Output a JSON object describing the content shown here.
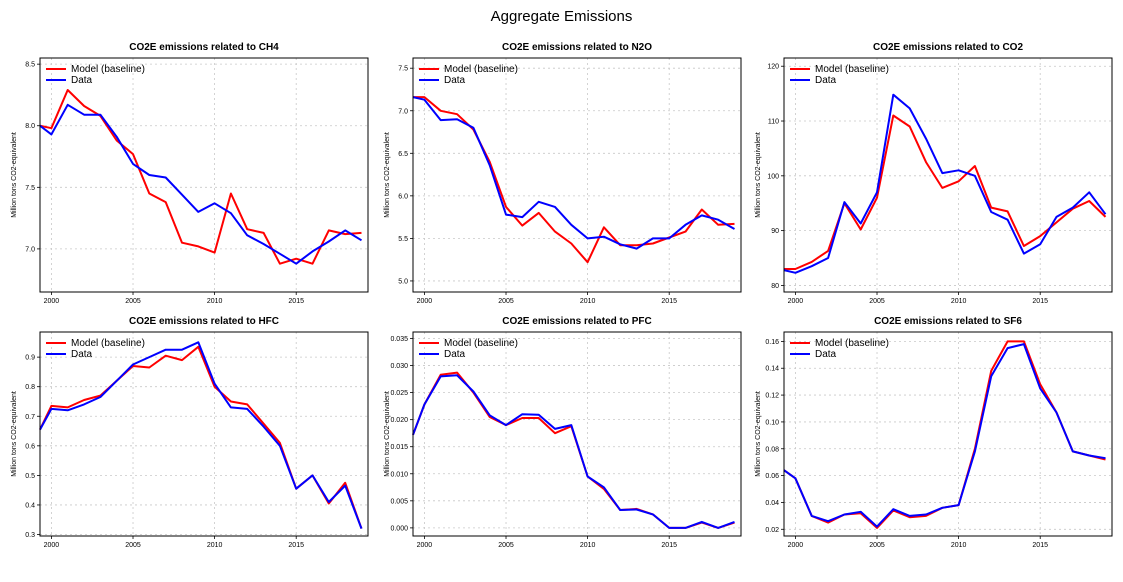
{
  "title": "Aggregate Emissions",
  "colors": {
    "model": "#ff0000",
    "data": "#0000ff",
    "grid": "#c8c8c8"
  },
  "chart_data": [
    {
      "type": "line",
      "title": "CO2E emissions related to CH4",
      "ylabel": "Million tons CO2-equivalent",
      "xlim": [
        1999.3,
        2019.4
      ],
      "ylim": [
        6.65,
        8.55
      ],
      "xticks": [
        2000,
        2005,
        2010,
        2015
      ],
      "yticks": [
        7.0,
        7.5,
        8.0,
        8.5
      ],
      "yticklabels": [
        "7.0",
        "7.5",
        "8.0",
        "8.5"
      ],
      "legend": [
        "Model (baseline)",
        "Data"
      ],
      "legend_position": "top-left",
      "x": [
        1999,
        2000,
        2001,
        2002,
        2003,
        2004,
        2005,
        2006,
        2007,
        2008,
        2009,
        2010,
        2011,
        2012,
        2013,
        2014,
        2015,
        2016,
        2017,
        2018,
        2019
      ],
      "series": [
        {
          "name": "Model (baseline)",
          "values": [
            8.0,
            7.98,
            8.29,
            8.16,
            8.08,
            7.88,
            7.77,
            7.45,
            7.38,
            7.05,
            7.02,
            6.97,
            7.45,
            7.16,
            7.13,
            6.88,
            6.92,
            6.88,
            7.15,
            7.12,
            7.13
          ]
        },
        {
          "name": "Data",
          "values": [
            8.0,
            7.93,
            8.17,
            8.09,
            8.09,
            7.91,
            7.69,
            7.6,
            7.58,
            7.44,
            7.3,
            7.37,
            7.29,
            7.11,
            7.04,
            6.96,
            6.88,
            6.98,
            7.06,
            7.15,
            7.07
          ]
        }
      ]
    },
    {
      "type": "line",
      "title": "CO2E emissions related to N2O",
      "ylabel": "Million tons CO2-equivalent",
      "xlim": [
        1999.3,
        2019.4
      ],
      "ylim": [
        4.87,
        7.62
      ],
      "xticks": [
        2000,
        2005,
        2010,
        2015
      ],
      "yticks": [
        5.0,
        5.5,
        6.0,
        6.5,
        7.0,
        7.5
      ],
      "yticklabels": [
        "5.0",
        "5.5",
        "6.0",
        "6.5",
        "7.0",
        "7.5"
      ],
      "legend": [
        "Model (baseline)",
        "Data"
      ],
      "legend_position": "top-left",
      "x": [
        1999,
        2000,
        2001,
        2002,
        2003,
        2004,
        2005,
        2006,
        2007,
        2008,
        2009,
        2010,
        2011,
        2012,
        2013,
        2014,
        2015,
        2016,
        2017,
        2018,
        2019
      ],
      "series": [
        {
          "name": "Model (baseline)",
          "values": [
            7.16,
            7.16,
            7.0,
            6.96,
            6.78,
            6.4,
            5.87,
            5.65,
            5.8,
            5.58,
            5.44,
            5.22,
            5.63,
            5.42,
            5.42,
            5.44,
            5.51,
            5.58,
            5.84,
            5.66,
            5.67
          ]
        },
        {
          "name": "Data",
          "values": [
            7.16,
            7.13,
            6.89,
            6.9,
            6.8,
            6.36,
            5.78,
            5.75,
            5.93,
            5.87,
            5.66,
            5.5,
            5.52,
            5.43,
            5.38,
            5.5,
            5.5,
            5.66,
            5.77,
            5.72,
            5.61
          ]
        }
      ]
    },
    {
      "type": "line",
      "title": "CO2E emissions related to CO2",
      "ylabel": "Million tons CO2-equivalent",
      "xlim": [
        1999.3,
        2019.4
      ],
      "ylim": [
        78.8,
        121.5
      ],
      "xticks": [
        2000,
        2005,
        2010,
        2015
      ],
      "yticks": [
        80,
        90,
        100,
        110,
        120
      ],
      "yticklabels": [
        "80",
        "90",
        "100",
        "110",
        "120"
      ],
      "legend": [
        "Model (baseline)",
        "Data"
      ],
      "legend_position": "top-left",
      "x": [
        1999,
        2000,
        2001,
        2002,
        2003,
        2004,
        2005,
        2006,
        2007,
        2008,
        2009,
        2010,
        2011,
        2012,
        2013,
        2014,
        2015,
        2016,
        2017,
        2018,
        2019
      ],
      "series": [
        {
          "name": "Model (baseline)",
          "values": [
            83.0,
            83.0,
            84.3,
            86.3,
            95.0,
            90.2,
            96.0,
            111.0,
            109.0,
            102.5,
            97.8,
            99.0,
            101.8,
            94.2,
            93.5,
            87.2,
            89.0,
            91.5,
            94.0,
            95.4,
            92.5
          ]
        },
        {
          "name": "Data",
          "values": [
            82.8,
            82.3,
            83.5,
            85.0,
            95.2,
            91.3,
            97.0,
            114.8,
            112.3,
            106.8,
            100.5,
            101.0,
            100.0,
            93.4,
            92.0,
            85.8,
            87.5,
            92.5,
            94.2,
            97.0,
            93.0
          ]
        }
      ]
    },
    {
      "type": "line",
      "title": "CO2E emissions related to HFC",
      "ylabel": "Million tons CO2-equivalent",
      "xlim": [
        1999.3,
        2019.4
      ],
      "ylim": [
        0.295,
        0.985
      ],
      "xticks": [
        2000,
        2005,
        2010,
        2015
      ],
      "yticks": [
        0.3,
        0.4,
        0.5,
        0.6,
        0.7,
        0.8,
        0.9
      ],
      "yticklabels": [
        "0.3",
        "0.4",
        "0.5",
        "0.6",
        "0.7",
        "0.8",
        "0.9"
      ],
      "legend": [
        "Model (baseline)",
        "Data"
      ],
      "legend_position": "top-left",
      "x": [
        1999,
        2000,
        2001,
        2002,
        2003,
        2004,
        2005,
        2006,
        2007,
        2008,
        2009,
        2010,
        2011,
        2012,
        2013,
        2014,
        2015,
        2016,
        2017,
        2018,
        2019
      ],
      "series": [
        {
          "name": "Model (baseline)",
          "values": [
            0.655,
            0.735,
            0.73,
            0.755,
            0.77,
            0.82,
            0.87,
            0.865,
            0.905,
            0.89,
            0.935,
            0.8,
            0.75,
            0.74,
            0.675,
            0.61,
            0.455,
            0.5,
            0.405,
            0.475,
            0.32
          ]
        },
        {
          "name": "Data",
          "values": [
            0.655,
            0.725,
            0.72,
            0.74,
            0.765,
            0.82,
            0.875,
            0.9,
            0.925,
            0.925,
            0.95,
            0.81,
            0.73,
            0.725,
            0.665,
            0.6,
            0.455,
            0.5,
            0.41,
            0.465,
            0.32
          ]
        }
      ]
    },
    {
      "type": "line",
      "title": "CO2E emissions related to PFC",
      "ylabel": "Million tons CO2-equivalent",
      "xlim": [
        1999.3,
        2019.4
      ],
      "ylim": [
        -0.0015,
        0.0362
      ],
      "xticks": [
        2000,
        2005,
        2010,
        2015
      ],
      "yticks": [
        0.0,
        0.005,
        0.01,
        0.015,
        0.02,
        0.025,
        0.03,
        0.035
      ],
      "yticklabels": [
        "0.000",
        "0.005",
        "0.010",
        "0.015",
        "0.020",
        "0.025",
        "0.030",
        "0.035"
      ],
      "legend": [
        "Model (baseline)",
        "Data"
      ],
      "legend_position": "top-left",
      "x": [
        1999,
        2000,
        2001,
        2002,
        2003,
        2004,
        2005,
        2006,
        2007,
        2008,
        2009,
        2010,
        2011,
        2012,
        2013,
        2014,
        2015,
        2016,
        2017,
        2018,
        2019
      ],
      "series": [
        {
          "name": "Model (baseline)",
          "values": [
            0.0172,
            0.0228,
            0.0283,
            0.0287,
            0.025,
            0.0205,
            0.019,
            0.0203,
            0.0203,
            0.0175,
            0.0188,
            0.0095,
            0.0072,
            0.0033,
            0.0035,
            0.0025,
            0.0,
            0.0,
            0.001,
            0.0,
            0.001
          ]
        },
        {
          "name": "Data",
          "values": [
            0.0172,
            0.0228,
            0.028,
            0.0282,
            0.0252,
            0.0208,
            0.019,
            0.021,
            0.0209,
            0.0183,
            0.019,
            0.0095,
            0.0075,
            0.0033,
            0.0034,
            0.0025,
            0.0,
            0.0,
            0.0011,
            0.0,
            0.0011
          ]
        }
      ]
    },
    {
      "type": "line",
      "title": "CO2E emissions related to SF6",
      "ylabel": "Million tons CO2-equivalent",
      "xlim": [
        1999.3,
        2019.4
      ],
      "ylim": [
        0.015,
        0.167
      ],
      "xticks": [
        2000,
        2005,
        2010,
        2015
      ],
      "yticks": [
        0.02,
        0.04,
        0.06,
        0.08,
        0.1,
        0.12,
        0.14,
        0.16
      ],
      "yticklabels": [
        "0.02",
        "0.04",
        "0.06",
        "0.08",
        "0.10",
        "0.12",
        "0.14",
        "0.16"
      ],
      "legend": [
        "Model (baseline)",
        "Data"
      ],
      "legend_position": "top-left",
      "x": [
        1999,
        2000,
        2001,
        2002,
        2003,
        2004,
        2005,
        2006,
        2007,
        2008,
        2009,
        2010,
        2011,
        2012,
        2013,
        2014,
        2015,
        2016,
        2017,
        2018,
        2019
      ],
      "series": [
        {
          "name": "Model (baseline)",
          "values": [
            0.064,
            0.058,
            0.03,
            0.025,
            0.031,
            0.032,
            0.021,
            0.034,
            0.029,
            0.03,
            0.036,
            0.038,
            0.08,
            0.138,
            0.16,
            0.16,
            0.128,
            0.107,
            0.078,
            0.075,
            0.072
          ]
        },
        {
          "name": "Data",
          "values": [
            0.064,
            0.058,
            0.03,
            0.026,
            0.031,
            0.033,
            0.022,
            0.035,
            0.03,
            0.031,
            0.036,
            0.038,
            0.078,
            0.134,
            0.155,
            0.158,
            0.125,
            0.107,
            0.078,
            0.075,
            0.073
          ]
        }
      ]
    }
  ]
}
